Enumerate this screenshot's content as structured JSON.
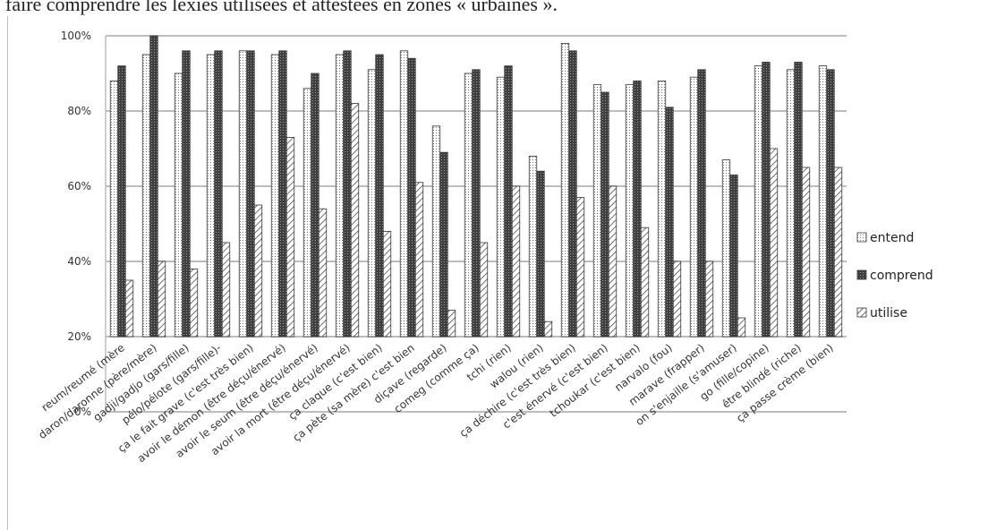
{
  "header_text": "faire comprendre les lexies utilisées et attestées en zones « urbaines ».",
  "colors": {
    "entend": "#ffffff",
    "comprend": "#4a4a4a",
    "utilise": "#ffffff",
    "grid": "#bdbdbd",
    "stroke": "#333333"
  },
  "chart_data": {
    "type": "bar",
    "title": "",
    "xlabel": "",
    "ylabel": "",
    "ylim": [
      0,
      100
    ],
    "yticks": [
      "0%",
      "20%",
      "40%",
      "60%",
      "80%",
      "100%"
    ],
    "legend_position": "right",
    "grid": true,
    "categories": [
      "reum/reumé (mère",
      "daron/daronne (père/mère)",
      "gadji/gadjo (gars/fille)",
      "pélo/pélote (gars/fille)-",
      "ça le fait grave (c'est très bien)",
      "avoir le démon (être déçu/énervé)",
      "avoir le seum (être déçu/énervé)",
      "avoir la mort (être déçu/énervé)",
      "ça claque (c'est bien)",
      "ça pète (sa mère) c'est bien",
      "diçave (regarde)",
      "comeg (comme ça)",
      "tchi (rien)",
      "walou (rien)",
      "ça déchire (c'est très bien)",
      "c'est énervé (c'est bien)",
      "tchoukar (c'est bien)",
      "narvalo (fou)",
      "marave (frapper)",
      "on s'enjaille (s'amuser)",
      "go (fille/copine)",
      "être blindé (riche)",
      "ça passe crème (bien)"
    ],
    "series": [
      {
        "name": "entend",
        "values": [
          88,
          95,
          90,
          95,
          96,
          95,
          86,
          95,
          91,
          96,
          76,
          90,
          89,
          68,
          98,
          87,
          87,
          88,
          89,
          67,
          92,
          91,
          92
        ]
      },
      {
        "name": "comprend",
        "values": [
          92,
          100,
          96,
          96,
          96,
          96,
          90,
          96,
          95,
          94,
          69,
          91,
          92,
          64,
          96,
          85,
          88,
          81,
          91,
          63,
          93,
          93,
          91
        ]
      },
      {
        "name": "utilise",
        "values": [
          35,
          40,
          38,
          45,
          55,
          73,
          54,
          82,
          48,
          61,
          27,
          45,
          60,
          24,
          57,
          60,
          49,
          40,
          40,
          25,
          70,
          65,
          65
        ]
      }
    ]
  }
}
